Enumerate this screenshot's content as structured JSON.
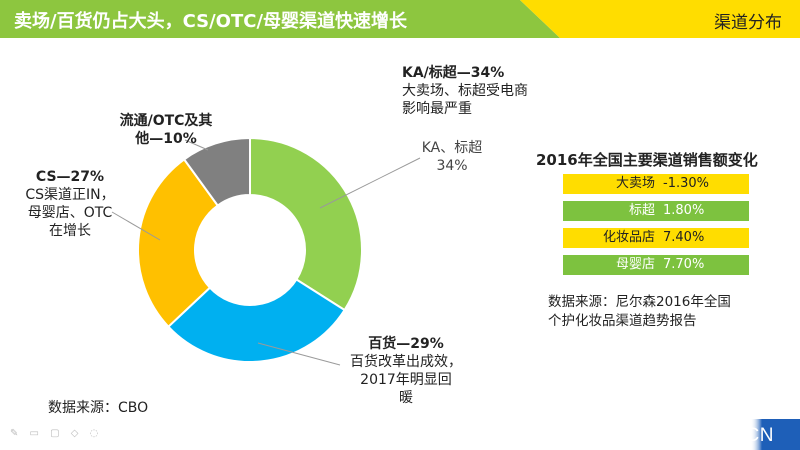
{
  "header": {
    "title": "卖场/百货仍占大头，CS/OTC/母婴渠道快速增长",
    "section": "渠道分布",
    "colors": {
      "green": "#8dc63f",
      "yellow": "#ffdd00"
    }
  },
  "chart_data": {
    "type": "pie",
    "variant": "donut",
    "categories": [
      "KA、标超",
      "百货",
      "CS",
      "流通/OTC及其他"
    ],
    "values": [
      34,
      29,
      27,
      10
    ],
    "colors": [
      "#92d050",
      "#00b0f0",
      "#ffc000",
      "#808080"
    ],
    "inner_label": {
      "name": "KA、标超",
      "value": "34%"
    },
    "callouts": {
      "ka": {
        "head": "KA/标超—34%",
        "lines": [
          "大卖场、标超受电商",
          "影响最严重"
        ]
      },
      "bh": {
        "head": "百货—29%",
        "lines": [
          "百货改革出成效，",
          "2017年明显回",
          "暖"
        ]
      },
      "cs": {
        "head": "CS—27%",
        "lines": [
          "CS渠道正IN，",
          "母婴店、OTC",
          "在增长"
        ]
      },
      "lt": {
        "head_lines": [
          "流通/OTC及其",
          "他—10%"
        ]
      }
    }
  },
  "table": {
    "title": "2016年全国主要渠道销售额变化",
    "rows": [
      {
        "name": "大卖场",
        "value": "-1.30%",
        "color": "#ffdd00"
      },
      {
        "name": "标超",
        "value": "1.80%",
        "color": "#7dc23f"
      },
      {
        "name": "化妆品店",
        "value": "7.40%",
        "color": "#ffdd00"
      },
      {
        "name": "母婴店",
        "value": "7.70%",
        "color": "#7dc23f"
      }
    ]
  },
  "sources": {
    "right_lines": [
      "数据来源：尼尔森2016年全国",
      "个护化妆品渠道趋势报告"
    ],
    "left": "数据来源：CBO"
  },
  "footer": {
    "url": "WWW.CBO.CN",
    "tools": "✎ ▭ ▢ ◇ ◌",
    "color": "#1e5fb8"
  }
}
